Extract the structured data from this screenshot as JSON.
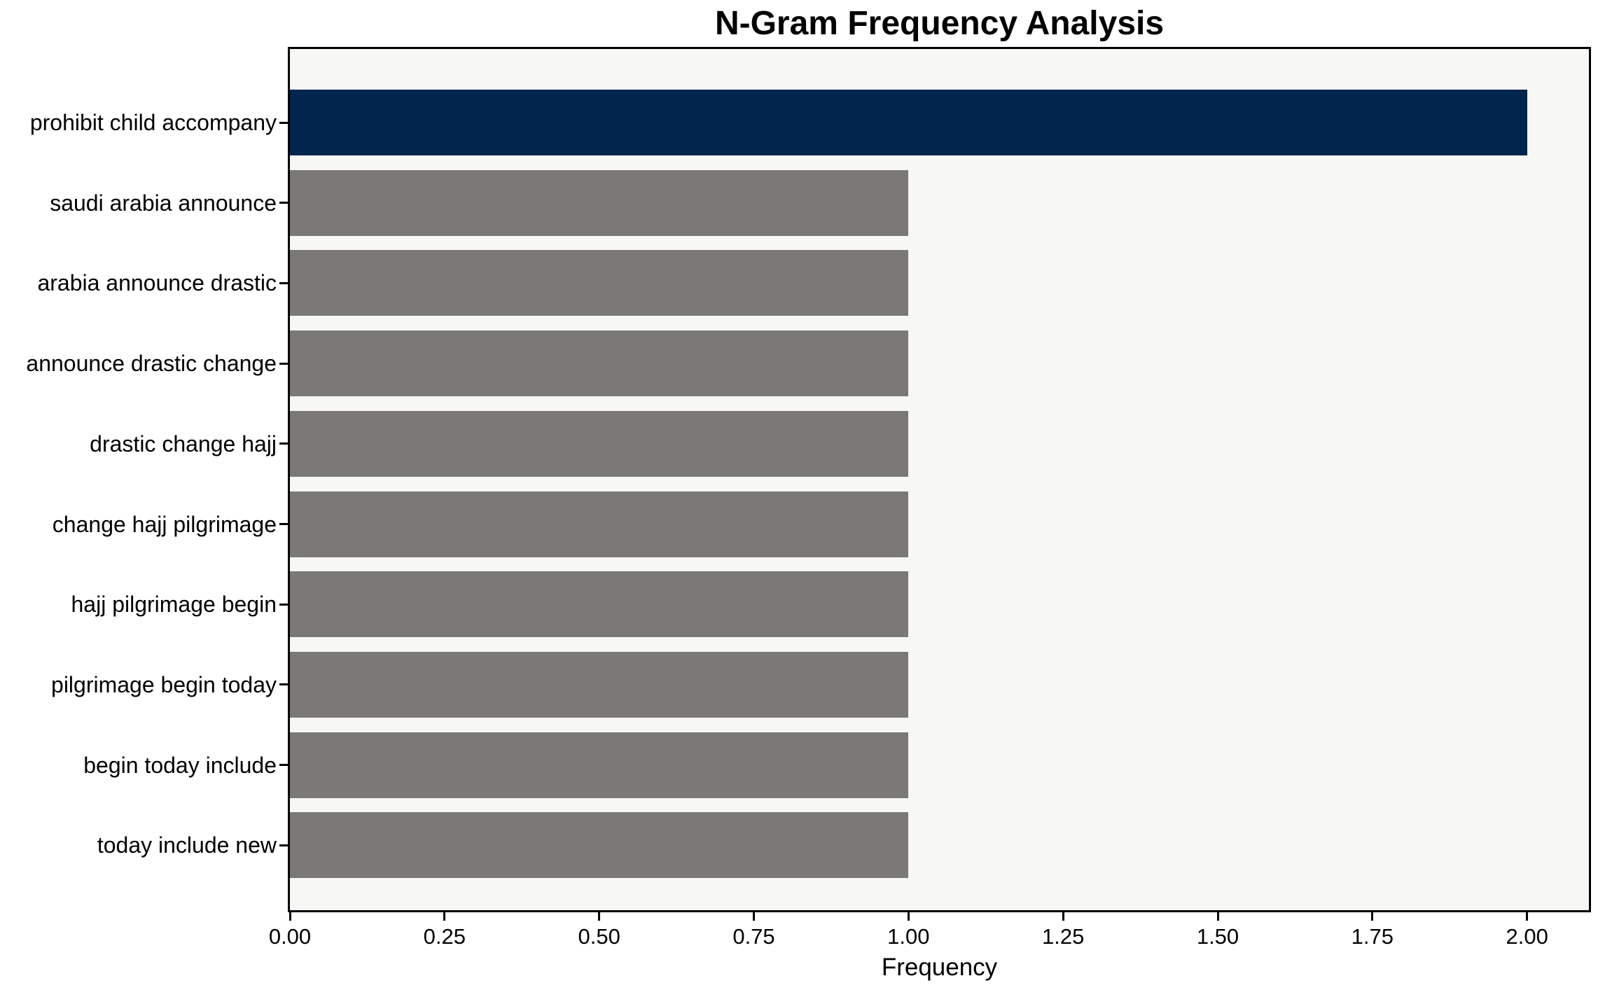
{
  "chart_data": {
    "type": "bar",
    "orientation": "horizontal",
    "title": "N-Gram Frequency Analysis",
    "xlabel": "Frequency",
    "ylabel": "",
    "categories": [
      "prohibit child accompany",
      "saudi arabia announce",
      "arabia announce drastic",
      "announce drastic change",
      "drastic change hajj",
      "change hajj pilgrimage",
      "hajj pilgrimage begin",
      "pilgrimage begin today",
      "begin today include",
      "today include new"
    ],
    "values": [
      2,
      1,
      1,
      1,
      1,
      1,
      1,
      1,
      1,
      1
    ],
    "highlight_index": 0,
    "xlim": [
      0,
      2.1
    ],
    "xticks": [
      0,
      0.25,
      0.5,
      0.75,
      1.0,
      1.25,
      1.5,
      1.75,
      2.0
    ],
    "xtick_labels": [
      "0.00",
      "0.25",
      "0.50",
      "0.75",
      "1.00",
      "1.25",
      "1.50",
      "1.75",
      "2.00"
    ],
    "grid": false,
    "legend_position": "none",
    "colors": {
      "highlight_bar": "#02254e",
      "default_bar": "#7a7976",
      "plot_background": "#f7f7f6",
      "figure_background": "#ffffff",
      "spine": "#000000",
      "text": "#000000"
    }
  }
}
